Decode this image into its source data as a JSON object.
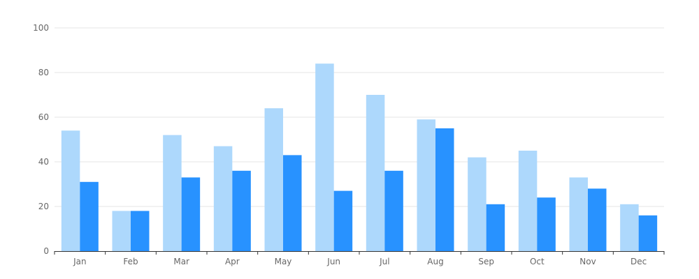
{
  "chart_data": {
    "type": "bar",
    "categories": [
      "Jan",
      "Feb",
      "Mar",
      "Apr",
      "May",
      "Jun",
      "Jul",
      "Aug",
      "Sep",
      "Oct",
      "Nov",
      "Dec"
    ],
    "series": [
      {
        "values": [
          54,
          18,
          52,
          47,
          64,
          84,
          70,
          59,
          42,
          45,
          33,
          21
        ],
        "color": "#add8fc"
      },
      {
        "values": [
          31,
          18,
          33,
          36,
          43,
          27,
          36,
          55,
          21,
          24,
          28,
          16
        ],
        "color": "#2892ff"
      }
    ],
    "y_ticks": [
      "0",
      "20",
      "40",
      "60",
      "80",
      "100"
    ],
    "ylim": [
      0,
      100
    ],
    "grid": true,
    "legend": "none",
    "colors": {
      "grid": "#e6e6e6",
      "axis": "#333333",
      "tick_text": "#666666"
    }
  }
}
